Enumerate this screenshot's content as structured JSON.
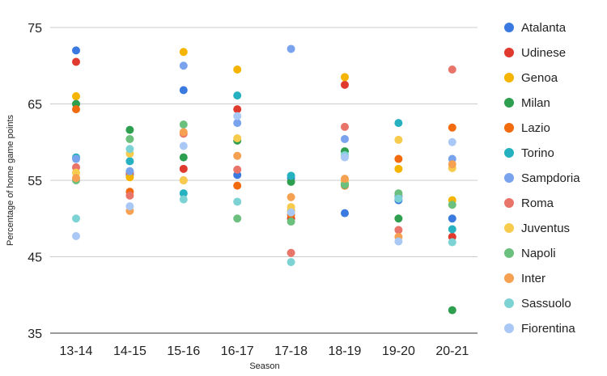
{
  "chart_data": {
    "type": "scatter",
    "title": "",
    "xlabel": "Season",
    "ylabel": "Percentage of home game points",
    "ylim": [
      35,
      75
    ],
    "yticks": [
      35,
      45,
      55,
      65,
      75
    ],
    "grid": true,
    "legend_position": "right",
    "categories": [
      "13-14",
      "14-15",
      "15-16",
      "16-17",
      "17-18",
      "18-19",
      "19-20",
      "20-21"
    ],
    "series": [
      {
        "name": "Atalanta",
        "color": "#3a7ae0",
        "values": [
          72.0,
          55.7,
          66.8,
          55.7,
          55.3,
          50.7,
          52.4,
          50.0
        ]
      },
      {
        "name": "Udinese",
        "color": "#e03a2e",
        "values": [
          70.5,
          56.0,
          56.5,
          64.3,
          50.0,
          67.5,
          52.9,
          47.6
        ]
      },
      {
        "name": "Genoa",
        "color": "#f4b400",
        "values": [
          66.0,
          55.4,
          71.8,
          69.5,
          51.0,
          68.5,
          56.5,
          52.4
        ]
      },
      {
        "name": "Milan",
        "color": "#2e9e4f",
        "values": [
          65.0,
          61.6,
          58.0,
          60.2,
          54.8,
          58.8,
          50.0,
          38.0
        ]
      },
      {
        "name": "Lazio",
        "color": "#f26b0f",
        "values": [
          64.3,
          53.5,
          55.0,
          54.3,
          50.5,
          54.3,
          57.8,
          61.9
        ]
      },
      {
        "name": "Torino",
        "color": "#26b1c0",
        "values": [
          58.0,
          57.5,
          53.3,
          66.1,
          55.6,
          54.6,
          62.5,
          48.6
        ]
      },
      {
        "name": "Sampdoria",
        "color": "#7aa3ee",
        "values": [
          57.8,
          56.2,
          70.0,
          62.5,
          72.2,
          60.4,
          52.9,
          57.8
        ]
      },
      {
        "name": "Roma",
        "color": "#e8746a",
        "values": [
          56.7,
          53.0,
          61.1,
          56.4,
          45.5,
          62.0,
          48.5,
          69.5
        ]
      },
      {
        "name": "Juventus",
        "color": "#f7cb4d",
        "values": [
          56.0,
          58.5,
          55.0,
          60.5,
          51.5,
          54.9,
          60.3,
          56.6
        ]
      },
      {
        "name": "Napoli",
        "color": "#6cc07e",
        "values": [
          55.0,
          60.4,
          62.3,
          50.0,
          49.6,
          54.4,
          53.3,
          51.8
        ]
      },
      {
        "name": "Inter",
        "color": "#f6a051",
        "values": [
          55.3,
          51.0,
          61.3,
          58.2,
          52.8,
          55.2,
          47.6,
          57.1
        ]
      },
      {
        "name": "Sassuolo",
        "color": "#7dd3d4",
        "values": [
          50.0,
          59.1,
          52.5,
          52.2,
          44.3,
          58.3,
          52.6,
          46.9
        ]
      },
      {
        "name": "Fiorentina",
        "color": "#aac8f5",
        "values": [
          47.7,
          51.6,
          59.5,
          63.4,
          50.8,
          58.0,
          47.0,
          60.0
        ]
      }
    ]
  }
}
